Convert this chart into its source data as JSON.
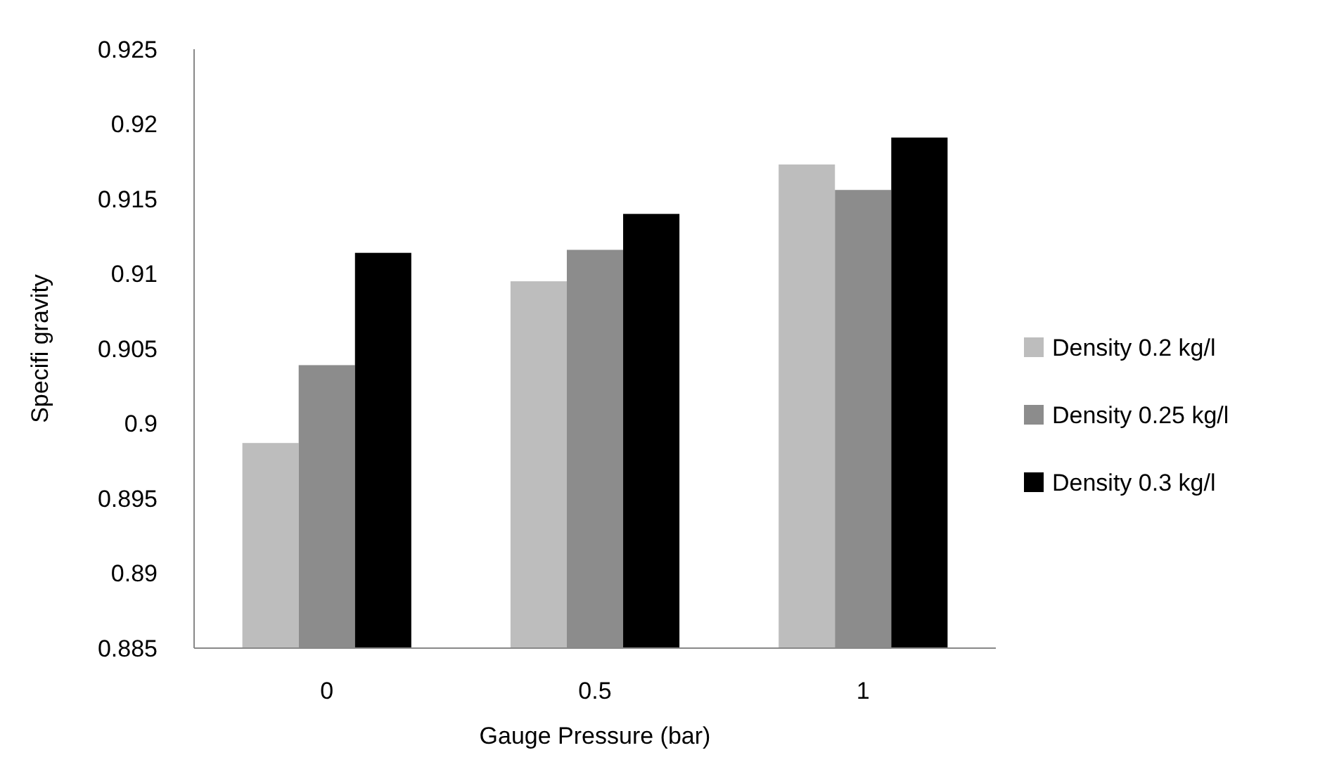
{
  "chart_data": {
    "type": "bar",
    "xlabel": "Gauge Pressure (bar)",
    "ylabel": "Specifi gravity",
    "categories": [
      "0",
      "0.5",
      "1"
    ],
    "series": [
      {
        "name": "Density 0.2 kg/l",
        "color": "#bdbdbd",
        "values": [
          0.8987,
          0.9095,
          0.9173
        ]
      },
      {
        "name": "Density 0.25 kg/l",
        "color": "#8c8c8c",
        "values": [
          0.9039,
          0.9116,
          0.9156
        ]
      },
      {
        "name": "Density 0.3 kg/l",
        "color": "#000000",
        "values": [
          0.9114,
          0.914,
          0.9191
        ]
      }
    ],
    "ylim": [
      0.885,
      0.925
    ],
    "yticks": [
      0.885,
      0.89,
      0.895,
      0.9,
      0.905,
      0.91,
      0.915,
      0.92,
      0.925
    ],
    "grid": false,
    "legend": "right"
  }
}
